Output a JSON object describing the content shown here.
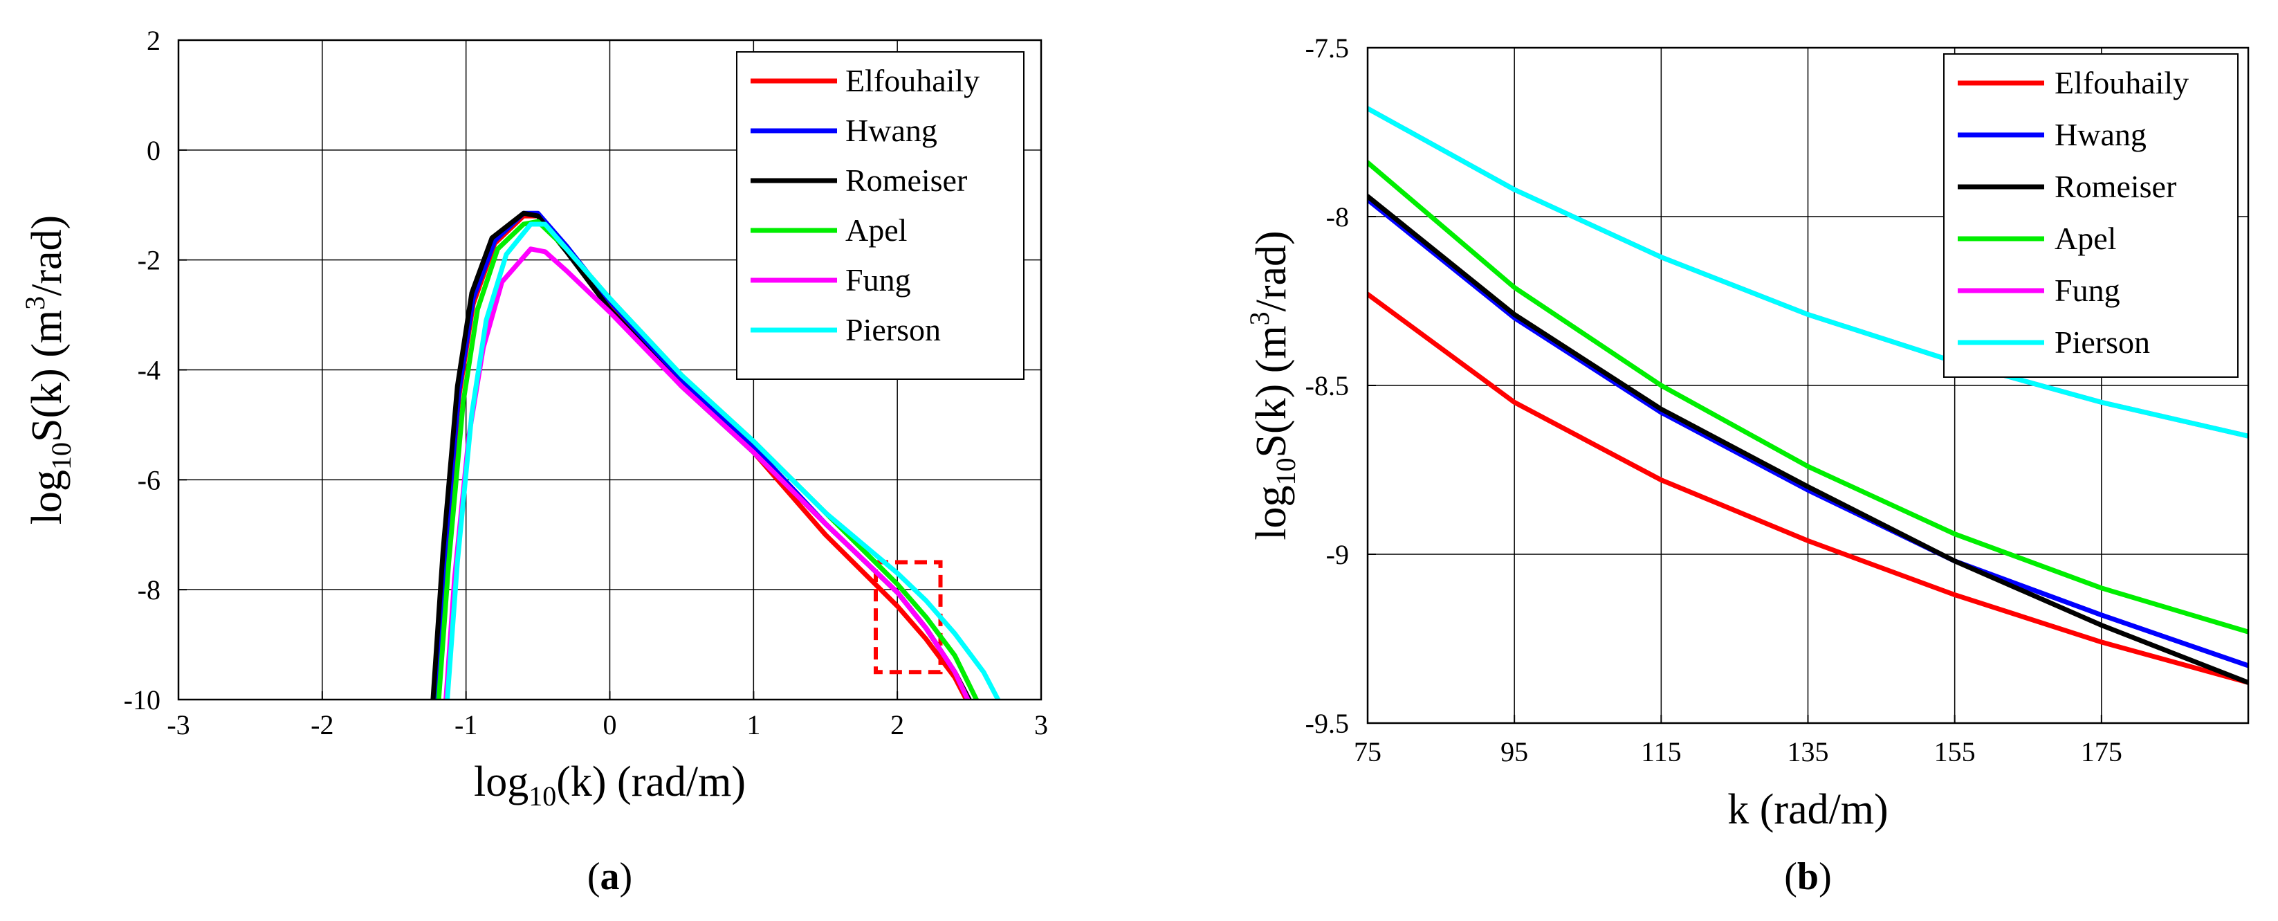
{
  "chart_data": [
    {
      "type": "line",
      "panel": "(a)",
      "panel_letter": "a",
      "xlabel_prefix": "log",
      "xlabel_sub": "10",
      "xlabel_rest": "(k) (rad/m)",
      "ylabel_prefix": "log",
      "ylabel_sub": "10",
      "ylabel_mid": "S(k) (m",
      "ylabel_sup": "3",
      "ylabel_end": "/rad)",
      "xlim": [
        -3,
        3
      ],
      "ylim": [
        -10,
        2
      ],
      "xticks": [
        -3,
        -2,
        -1,
        0,
        1,
        2,
        3
      ],
      "yticks": [
        -10,
        -8,
        -6,
        -4,
        -2,
        0,
        2
      ],
      "ytick_labels": [
        "-10",
        "-8",
        "-6",
        "-4",
        "-2",
        "0",
        "2"
      ],
      "grid": true,
      "legend_position": "top-right",
      "zoom_box": {
        "x": [
          1.85,
          2.3
        ],
        "y": [
          -9.5,
          -7.5
        ],
        "color": "#ff0000"
      },
      "series": [
        {
          "name": "Elfouhaily",
          "color": "#ff0000",
          "x": [
            -1.22,
            -1.15,
            -1.05,
            -0.95,
            -0.8,
            -0.6,
            -0.5,
            -0.3,
            0,
            0.5,
            1,
            1.5,
            2,
            2.2,
            2.4,
            2.48
          ],
          "y": [
            -10,
            -7.5,
            -4.5,
            -2.8,
            -1.7,
            -1.2,
            -1.2,
            -1.8,
            -2.8,
            -4.2,
            -5.5,
            -7,
            -8.3,
            -8.9,
            -9.6,
            -10
          ]
        },
        {
          "name": "Hwang",
          "color": "#0000ff",
          "x": [
            -1.22,
            -1.15,
            -1.05,
            -0.95,
            -0.8,
            -0.6,
            -0.5,
            -0.3,
            0,
            0.5,
            1,
            1.5,
            2,
            2.2,
            2.4,
            2.49
          ],
          "y": [
            -10,
            -7.4,
            -4.4,
            -2.7,
            -1.65,
            -1.15,
            -1.15,
            -1.75,
            -2.75,
            -4.2,
            -5.4,
            -6.8,
            -8.05,
            -8.7,
            -9.5,
            -10
          ]
        },
        {
          "name": "Romeiser",
          "color": "#000000",
          "x": [
            -1.23,
            -1.16,
            -1.06,
            -0.96,
            -0.82,
            -0.6,
            -0.5,
            -0.3,
            0,
            0.5,
            1,
            1.5,
            2,
            2.2,
            2.4,
            2.5
          ],
          "y": [
            -10,
            -7.3,
            -4.3,
            -2.6,
            -1.6,
            -1.15,
            -1.2,
            -1.85,
            -2.9,
            -4.3,
            -5.5,
            -6.8,
            -8.05,
            -8.7,
            -9.5,
            -10
          ]
        },
        {
          "name": "Apel",
          "color": "#00ee00",
          "x": [
            -1.19,
            -1.12,
            -1.02,
            -0.92,
            -0.78,
            -0.6,
            -0.5,
            -0.3,
            0,
            0.5,
            1,
            1.5,
            2,
            2.2,
            2.4,
            2.55
          ],
          "y": [
            -10,
            -7.5,
            -4.6,
            -2.9,
            -1.8,
            -1.35,
            -1.3,
            -1.8,
            -2.7,
            -4.1,
            -5.3,
            -6.6,
            -7.9,
            -8.5,
            -9.2,
            -10
          ]
        },
        {
          "name": "Fung",
          "color": "#ff00ff",
          "x": [
            -1.14,
            -1.08,
            -0.98,
            -0.88,
            -0.75,
            -0.55,
            -0.45,
            -0.3,
            0,
            0.5,
            1,
            1.5,
            2,
            2.2,
            2.4,
            2.49
          ],
          "y": [
            -10,
            -7.8,
            -5.2,
            -3.6,
            -2.4,
            -1.8,
            -1.85,
            -2.2,
            -2.95,
            -4.3,
            -5.5,
            -6.8,
            -8.05,
            -8.7,
            -9.5,
            -10
          ]
        },
        {
          "name": "Pierson",
          "color": "#00ffff",
          "x": [
            -1.13,
            -1.06,
            -0.96,
            -0.86,
            -0.72,
            -0.55,
            -0.45,
            -0.3,
            0,
            0.5,
            1,
            1.5,
            2,
            2.2,
            2.4,
            2.6,
            2.7
          ],
          "y": [
            -10,
            -7.5,
            -4.8,
            -3.1,
            -1.9,
            -1.35,
            -1.35,
            -1.8,
            -2.7,
            -4.1,
            -5.3,
            -6.6,
            -7.7,
            -8.2,
            -8.8,
            -9.5,
            -10
          ]
        }
      ]
    },
    {
      "type": "line",
      "panel": "(b)",
      "panel_letter": "b",
      "xlabel": "k (rad/m)",
      "ylabel_prefix": "log",
      "ylabel_sub": "10",
      "ylabel_mid": "S(k) (m",
      "ylabel_sup": "3",
      "ylabel_end": "/rad)",
      "xlim": [
        75,
        195
      ],
      "ylim": [
        -9.5,
        -7.5
      ],
      "xticks": [
        75,
        95,
        115,
        135,
        155,
        175
      ],
      "yticks": [
        -9.5,
        -9,
        -8.5,
        -8,
        -7.5
      ],
      "ytick_labels": [
        "-9.5",
        "-9",
        "-8.5",
        "-8",
        "-7.5"
      ],
      "grid": true,
      "legend_position": "top-right",
      "series": [
        {
          "name": "Elfouhaily",
          "color": "#ff0000",
          "x": [
            75,
            95,
            115,
            135,
            155,
            175,
            195
          ],
          "y": [
            -8.23,
            -8.55,
            -8.78,
            -8.96,
            -9.12,
            -9.26,
            -9.38
          ]
        },
        {
          "name": "Hwang",
          "color": "#0000ff",
          "x": [
            75,
            95,
            115,
            135,
            155,
            175,
            195
          ],
          "y": [
            -7.95,
            -8.3,
            -8.58,
            -8.81,
            -9.02,
            -9.18,
            -9.33
          ]
        },
        {
          "name": "Romeiser",
          "color": "#000000",
          "x": [
            75,
            95,
            115,
            135,
            155,
            175,
            195
          ],
          "y": [
            -7.94,
            -8.29,
            -8.57,
            -8.8,
            -9.02,
            -9.21,
            -9.38
          ]
        },
        {
          "name": "Apel",
          "color": "#00ee00",
          "x": [
            75,
            95,
            115,
            135,
            155,
            175,
            195
          ],
          "y": [
            -7.84,
            -8.21,
            -8.5,
            -8.74,
            -8.94,
            -9.1,
            -9.23
          ]
        },
        {
          "name": "Fung",
          "color": "#ff00ff",
          "x": [
            75,
            95,
            115,
            135,
            155,
            175,
            195
          ],
          "y": [
            -7.68,
            -7.92,
            -8.12,
            -8.29,
            -8.43,
            -8.55,
            -8.65
          ]
        },
        {
          "name": "Pierson",
          "color": "#00ffff",
          "x": [
            75,
            95,
            115,
            135,
            155,
            175,
            195
          ],
          "y": [
            -7.68,
            -7.92,
            -8.12,
            -8.29,
            -8.43,
            -8.55,
            -8.65
          ]
        }
      ]
    }
  ]
}
